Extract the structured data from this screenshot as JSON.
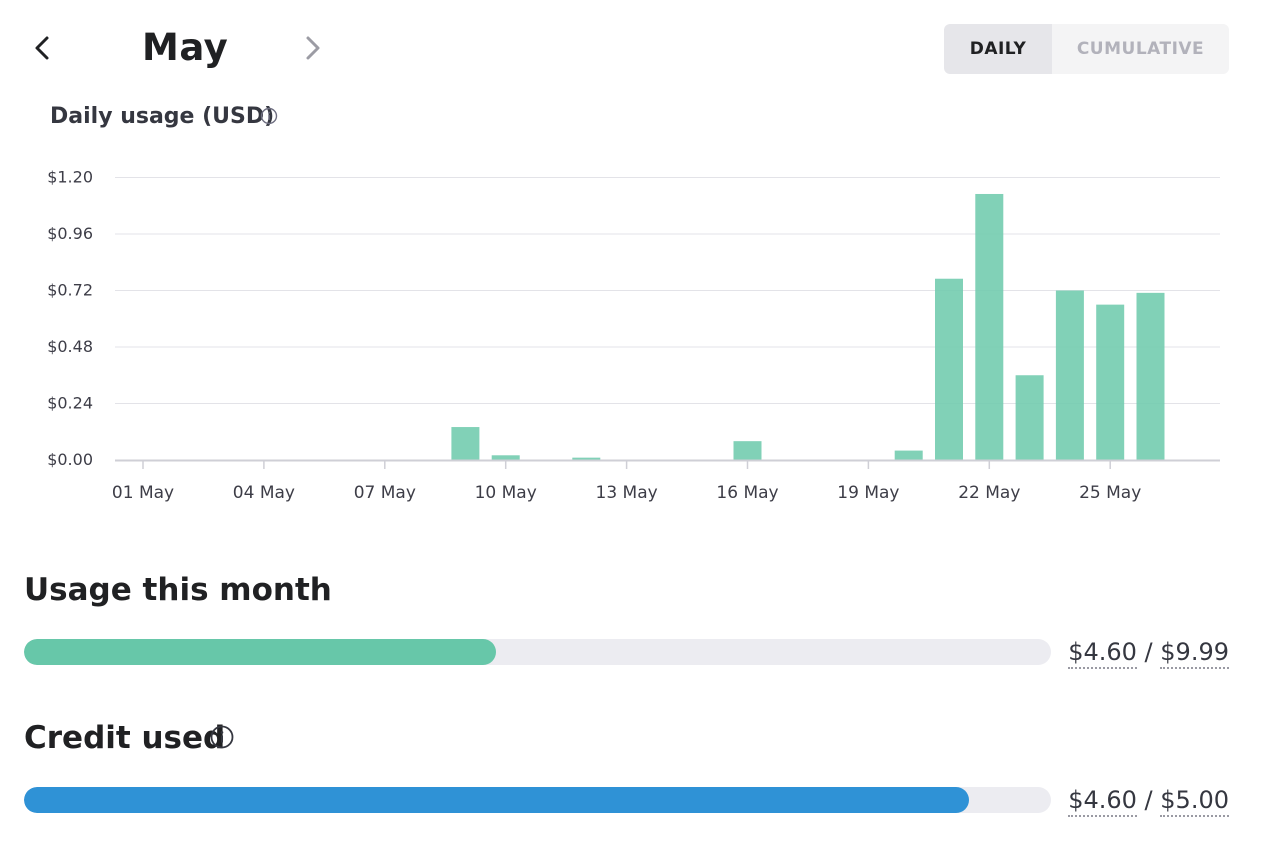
{
  "header": {
    "month": "May",
    "toggle": {
      "daily_label": "DAILY",
      "cumulative_label": "CUMULATIVE",
      "selected": "daily"
    }
  },
  "chart_title": "Daily usage (USD)",
  "chart_data": {
    "type": "bar",
    "title": "Daily usage (USD)",
    "y_tick_labels": [
      "$0.00",
      "$0.24",
      "$0.48",
      "$0.72",
      "$0.96",
      "$1.20"
    ],
    "y_ticks": [
      0,
      0.24,
      0.48,
      0.72,
      0.96,
      1.2
    ],
    "ylim": [
      0,
      1.2
    ],
    "x_tick_labels": [
      "01 May",
      "04 May",
      "07 May",
      "10 May",
      "13 May",
      "16 May",
      "19 May",
      "22 May",
      "25 May"
    ],
    "categories": [
      "01 May",
      "02 May",
      "03 May",
      "04 May",
      "05 May",
      "06 May",
      "07 May",
      "08 May",
      "09 May",
      "10 May",
      "11 May",
      "12 May",
      "13 May",
      "14 May",
      "15 May",
      "16 May",
      "17 May",
      "18 May",
      "19 May",
      "20 May",
      "21 May",
      "22 May",
      "23 May",
      "24 May",
      "25 May",
      "26 May"
    ],
    "values": [
      0,
      0,
      0,
      0,
      0,
      0,
      0,
      0,
      0.14,
      0.02,
      0,
      0.01,
      0,
      0,
      0,
      0.08,
      0,
      0,
      0,
      0.04,
      0.77,
      1.13,
      0.36,
      0.72,
      0.66,
      0.71
    ],
    "grid": true,
    "bar_color": "#6fcbad"
  },
  "usage": {
    "title": "Usage this month",
    "used": "$4.60",
    "limit": "$9.99",
    "separator": "/",
    "fraction": 0.46,
    "color": "#67c7a9"
  },
  "credit": {
    "title": "Credit used",
    "used": "$4.60",
    "limit": "$5.00",
    "separator": "/",
    "fraction": 0.92,
    "color": "#2f92d6"
  },
  "icons": {
    "prev": "chevron-left-icon",
    "next": "chevron-right-icon",
    "info": "info-icon"
  }
}
